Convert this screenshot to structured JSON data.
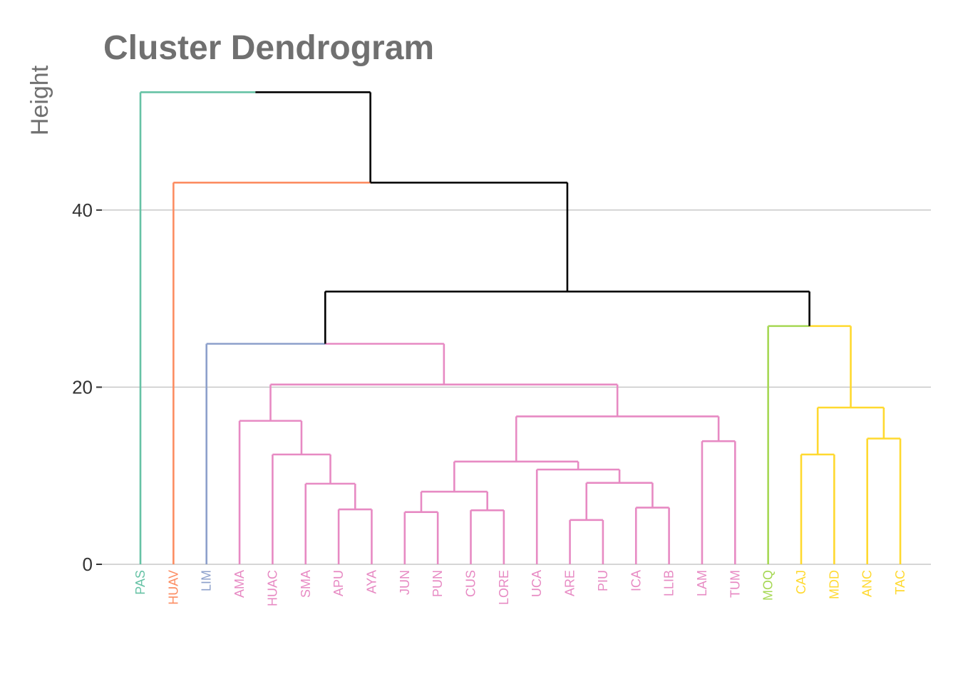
{
  "chart_data": {
    "type": "dendrogram",
    "title": "Cluster Dendrogram",
    "ylabel": "Height",
    "yticks": [
      0,
      20,
      40
    ],
    "ylim": [
      0,
      54
    ],
    "grid": "horizontal",
    "leaves": [
      {
        "label": "PAS",
        "color": "#66C2A5"
      },
      {
        "label": "HUAV",
        "color": "#FC8D62"
      },
      {
        "label": "LIM",
        "color": "#8DA0CB"
      },
      {
        "label": "AMA",
        "color": "#E78AC3"
      },
      {
        "label": "HUAC",
        "color": "#E78AC3"
      },
      {
        "label": "SMA",
        "color": "#E78AC3"
      },
      {
        "label": "APU",
        "color": "#E78AC3"
      },
      {
        "label": "AYA",
        "color": "#E78AC3"
      },
      {
        "label": "JUN",
        "color": "#E78AC3"
      },
      {
        "label": "PUN",
        "color": "#E78AC3"
      },
      {
        "label": "CUS",
        "color": "#E78AC3"
      },
      {
        "label": "LORE",
        "color": "#E78AC3"
      },
      {
        "label": "UCA",
        "color": "#E78AC3"
      },
      {
        "label": "ARE",
        "color": "#E78AC3"
      },
      {
        "label": "PIU",
        "color": "#E78AC3"
      },
      {
        "label": "ICA",
        "color": "#E78AC3"
      },
      {
        "label": "LLIB",
        "color": "#E78AC3"
      },
      {
        "label": "LAM",
        "color": "#E78AC3"
      },
      {
        "label": "TUM",
        "color": "#E78AC3"
      },
      {
        "label": "MOQ",
        "color": "#A6D854"
      },
      {
        "label": "CAJ",
        "color": "#FFD92F"
      },
      {
        "label": "MDD",
        "color": "#FFD92F"
      },
      {
        "label": "ANC",
        "color": "#FFD92F"
      },
      {
        "label": "TAC",
        "color": "#FFD92F"
      }
    ],
    "merges": [
      {
        "a": "APU",
        "b": "AYA",
        "height": 6.2,
        "color": "#E78AC3"
      },
      {
        "a": "JUN",
        "b": "PUN",
        "height": 5.9,
        "color": "#E78AC3"
      },
      {
        "a": "CUS",
        "b": "LORE",
        "height": 6.1,
        "color": "#E78AC3"
      },
      {
        "a": "ARE",
        "b": "PIU",
        "height": 5.0,
        "color": "#E78AC3"
      },
      {
        "a": "ICA",
        "b": "LLIB",
        "height": 6.4,
        "color": "#E78AC3"
      },
      {
        "a": "LAM",
        "b": "TUM",
        "height": 13.9,
        "color": "#E78AC3"
      },
      {
        "a": "CAJ",
        "b": "MDD",
        "height": 12.4,
        "color": "#FFD92F"
      },
      {
        "a": "ANC",
        "b": "TAC",
        "height": 14.2,
        "color": "#FFD92F"
      },
      {
        "a": "SMA",
        "b": "APU+AYA",
        "height": 9.1,
        "color": "#E78AC3"
      },
      {
        "a": "JUN+PUN",
        "b": "CUS+LORE",
        "height": 8.2,
        "color": "#E78AC3"
      },
      {
        "a": "ARE+PIU",
        "b": "ICA+LLIB",
        "height": 9.2,
        "color": "#E78AC3"
      },
      {
        "a": "HUAC",
        "b": "SMA+APU+AYA",
        "height": 12.4,
        "color": "#E78AC3"
      },
      {
        "a": "UCA",
        "b": "ARE+PIU+ICA+LLIB",
        "height": 10.7,
        "color": "#E78AC3"
      },
      {
        "a": "AMA",
        "b": "HUAC+SMA+APU+AYA",
        "height": 16.2,
        "color": "#E78AC3"
      },
      {
        "a": "JUN+PUN+CUS+LORE",
        "b": "UCA+ARE+PIU+ICA+LLIB",
        "height": 11.6,
        "color": "#E78AC3"
      },
      {
        "a": "JUN..LLIB",
        "b": "LAM+TUM",
        "height": 16.7,
        "color": "#E78AC3"
      },
      {
        "a": "AMA..AYA",
        "b": "JUN..TUM",
        "height": 20.3,
        "color": "#E78AC3"
      },
      {
        "a": "LIM",
        "b": "AMA..TUM",
        "height": 24.9,
        "color": "#E78AC3",
        "color_left": "#8DA0CB"
      },
      {
        "a": "CAJ+MDD",
        "b": "ANC+TAC",
        "height": 17.7,
        "color": "#FFD92F"
      },
      {
        "a": "MOQ",
        "b": "CAJ..TAC",
        "height": 26.9,
        "color": "#FFD92F",
        "color_left": "#A6D854"
      },
      {
        "a": "LIM..TUM",
        "b": "MOQ..TAC",
        "height": 30.8,
        "color": "#000000"
      },
      {
        "a": "HUAV",
        "b": "LIM..TAC",
        "height": 43.1,
        "color": "#000000",
        "color_left": "#FC8D62"
      },
      {
        "a": "PAS",
        "b": "HUAV..TAC",
        "height": 53.3,
        "color": "#000000",
        "color_left": "#66C2A5"
      }
    ]
  }
}
